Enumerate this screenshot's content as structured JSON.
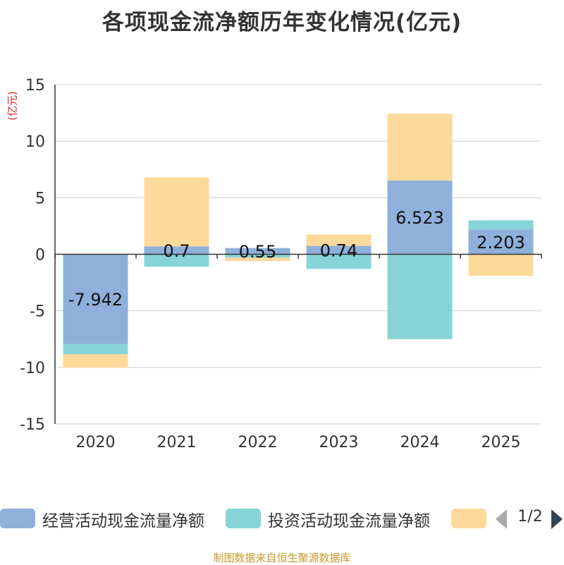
{
  "chart_data": {
    "type": "bar",
    "stacked": true,
    "title": "各项现金流净额历年变化情况(亿元)",
    "ylabel": "(亿元)",
    "xlabel": "",
    "categories": [
      "2020",
      "2021",
      "2022",
      "2023",
      "2024",
      "2025"
    ],
    "ylim": [
      -15,
      15
    ],
    "yticks": [
      15,
      10,
      5,
      0,
      -5,
      -10,
      -15
    ],
    "grid": true,
    "series": [
      {
        "name": "经营活动现金流量净额",
        "color": "#8eb0da",
        "values": [
          -7.942,
          0.7,
          0.55,
          0.74,
          6.523,
          2.203
        ]
      },
      {
        "name": "投资活动现金流量净额",
        "color": "#86d4d8",
        "values": [
          -0.9,
          -1.1,
          -0.3,
          -1.3,
          -7.5,
          0.8
        ]
      },
      {
        "name": "",
        "color": "#fdd99a",
        "values": [
          -1.2,
          6.1,
          -0.3,
          1.0,
          5.9,
          -1.9
        ]
      }
    ],
    "data_labels": [
      "-7.942",
      "0.7",
      "0.55",
      "0.74",
      "6.523",
      "2.203"
    ]
  },
  "legend": {
    "items": [
      {
        "label": "经营活动现金流量净额",
        "color": "#8eb0da"
      },
      {
        "label": "投资活动现金流量净额",
        "color": "#86d4d8"
      },
      {
        "label": "",
        "color": "#fdd99a"
      }
    ],
    "page": "1/2"
  },
  "footer": "制图数据来自恒生聚源数据库"
}
